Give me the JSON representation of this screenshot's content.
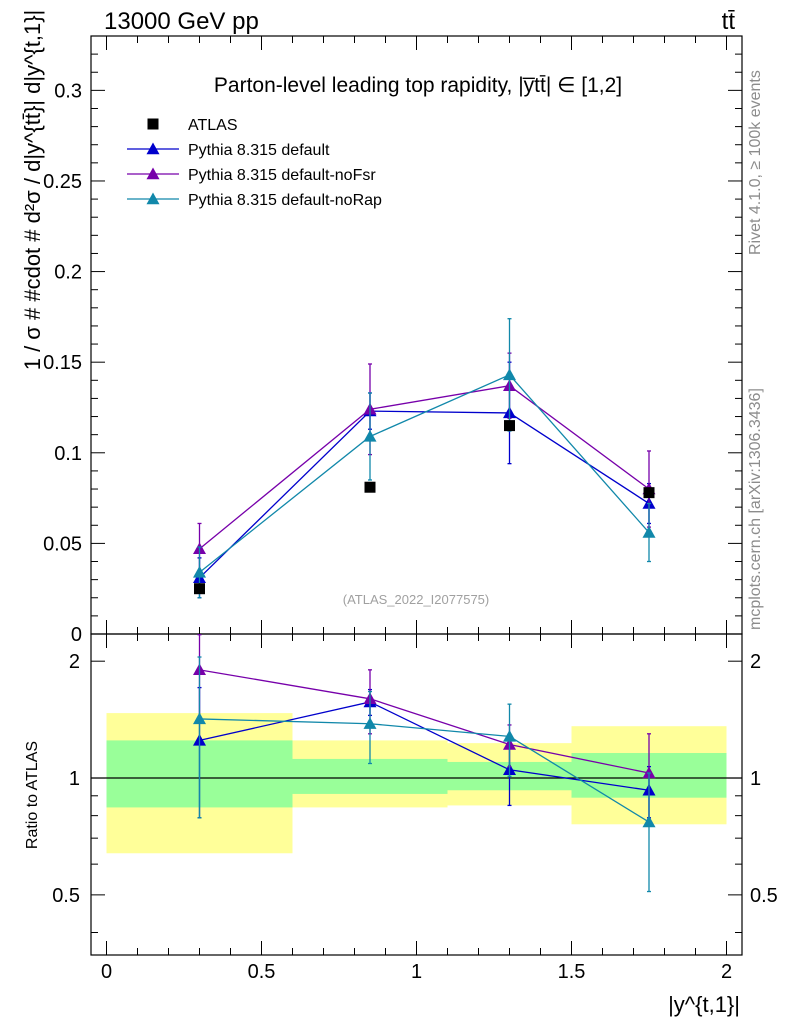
{
  "header": {
    "energy_label": "13000 GeV pp",
    "process_label": "tt̄"
  },
  "side": {
    "rivet_label": "Rivet 4.1.0, ≥ 100k events",
    "mcplots_label": "mcplots.cern.ch [arXiv:1306.3436]"
  },
  "chart_data": {
    "type": "line",
    "title": "Parton-level leading top rapidity, |y̅tt̄| ∈ [1,2]",
    "analysis_id": "(ATLAS_2022_I2077575)",
    "xlabel": "|y^{t,1}|",
    "ylabel": "1 / σ # #cdot # d²σ / d|y^{tt̄}| d|y^{t,1}|",
    "ratio_ylabel": "Ratio to ATLAS",
    "xlim": [
      -0.05,
      2.05
    ],
    "ylim": [
      0,
      0.33
    ],
    "ratio_ylim": [
      0.35,
      2.35
    ],
    "x_ticks": [
      0,
      0.5,
      1,
      1.5,
      2
    ],
    "x_tick_labels": [
      "0",
      "0.5",
      "1",
      "1.5",
      "2"
    ],
    "y_ticks": [
      0,
      0.05,
      0.1,
      0.15,
      0.2,
      0.25,
      0.3
    ],
    "y_tick_labels": [
      "0",
      "0.05",
      "0.1",
      "0.15",
      "0.2",
      "0.25",
      "0.3"
    ],
    "ratio_ticks": [
      0.5,
      1,
      2
    ],
    "ratio_tick_labels": [
      "0.5",
      "1",
      "2"
    ],
    "bins": [
      [
        0,
        0.6
      ],
      [
        0.6,
        1.1
      ],
      [
        1.1,
        1.5
      ],
      [
        1.5,
        2.0
      ]
    ],
    "ratio_bands": {
      "inner": [
        [
          0.84,
          1.25
        ],
        [
          0.91,
          1.12
        ],
        [
          0.93,
          1.1
        ],
        [
          0.89,
          1.16
        ]
      ],
      "outer": [
        [
          0.64,
          1.47
        ],
        [
          0.84,
          1.25
        ],
        [
          0.85,
          1.23
        ],
        [
          0.76,
          1.36
        ]
      ],
      "inner_color": "#99ff99",
      "outer_color": "#ffff99"
    },
    "data": {
      "name": "ATLAS",
      "color": "#000000",
      "x": [
        0.3,
        0.85,
        1.3,
        1.75
      ],
      "y": [
        0.025,
        0.081,
        0.115,
        0.078
      ]
    },
    "series": [
      {
        "name": "Pythia 8.315 default",
        "color": "#0000cc",
        "x": [
          0.3,
          0.85,
          1.3,
          1.75
        ],
        "y": [
          0.031,
          0.123,
          0.122,
          0.072
        ],
        "err": [
          0.011,
          0.01,
          0.028,
          0.011
        ],
        "ratio": [
          1.25,
          1.57,
          1.05,
          0.93
        ],
        "ratio_err": [
          0.46,
          0.12,
          0.2,
          0.14
        ]
      },
      {
        "name": "Pythia 8.315 default-noFsr",
        "color": "#7700aa",
        "x": [
          0.3,
          0.85,
          1.3,
          1.75
        ],
        "y": [
          0.047,
          0.124,
          0.137,
          0.08
        ],
        "err": [
          0.014,
          0.025,
          0.018,
          0.021
        ],
        "ratio": [
          1.9,
          1.6,
          1.22,
          1.03
        ],
        "ratio_err": [
          0.46,
          0.3,
          0.15,
          0.27
        ]
      },
      {
        "name": "Pythia 8.315 default-noRap",
        "color": "#1188aa",
        "x": [
          0.3,
          0.85,
          1.3,
          1.75
        ],
        "y": [
          0.034,
          0.109,
          0.143,
          0.056
        ],
        "err": [
          0.014,
          0.024,
          0.031,
          0.016
        ],
        "ratio": [
          1.42,
          1.38,
          1.28,
          0.77
        ],
        "ratio_err": [
          0.63,
          0.29,
          0.27,
          0.26
        ]
      }
    ]
  }
}
